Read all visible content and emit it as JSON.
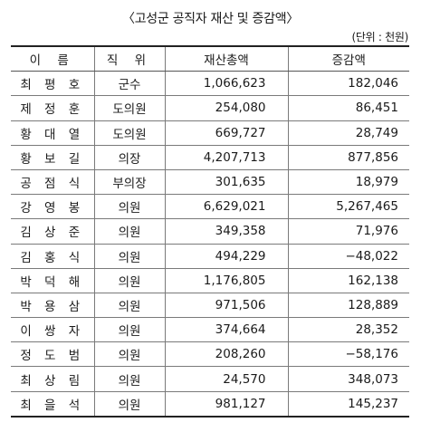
{
  "title": "〈고성군 공직자 재산 및 증감액〉",
  "unit": "(단위 : 천원)",
  "table": {
    "headers": [
      "이 름",
      "직 위",
      "재산총액",
      "증감액"
    ],
    "rows": [
      {
        "name": "최 평 호",
        "position": "군수",
        "assets": "1,066,623",
        "change": "182,046"
      },
      {
        "name": "제 정 훈",
        "position": "도의원",
        "assets": "254,080",
        "change": "86,451"
      },
      {
        "name": "황 대 열",
        "position": "도의원",
        "assets": "669,727",
        "change": "28,749"
      },
      {
        "name": "황 보 길",
        "position": "의장",
        "assets": "4,207,713",
        "change": "877,856"
      },
      {
        "name": "공 점 식",
        "position": "부의장",
        "assets": "301,635",
        "change": "18,979"
      },
      {
        "name": "강 영 봉",
        "position": "의원",
        "assets": "6,629,021",
        "change": "5,267,465"
      },
      {
        "name": "김 상 준",
        "position": "의원",
        "assets": "349,358",
        "change": "71,976"
      },
      {
        "name": "김 홍 식",
        "position": "의원",
        "assets": "494,229",
        "change": "−48,022"
      },
      {
        "name": "박 덕 해",
        "position": "의원",
        "assets": "1,176,805",
        "change": "162,138"
      },
      {
        "name": "박 용 삼",
        "position": "의원",
        "assets": "971,506",
        "change": "128,889"
      },
      {
        "name": "이 쌍 자",
        "position": "의원",
        "assets": "374,664",
        "change": "28,352"
      },
      {
        "name": "정 도 범",
        "position": "의원",
        "assets": "208,260",
        "change": "−58,176"
      },
      {
        "name": "최 상 림",
        "position": "의원",
        "assets": "24,570",
        "change": "348,073"
      },
      {
        "name": "최 을 석",
        "position": "의원",
        "assets": "981,127",
        "change": "145,237"
      }
    ]
  }
}
